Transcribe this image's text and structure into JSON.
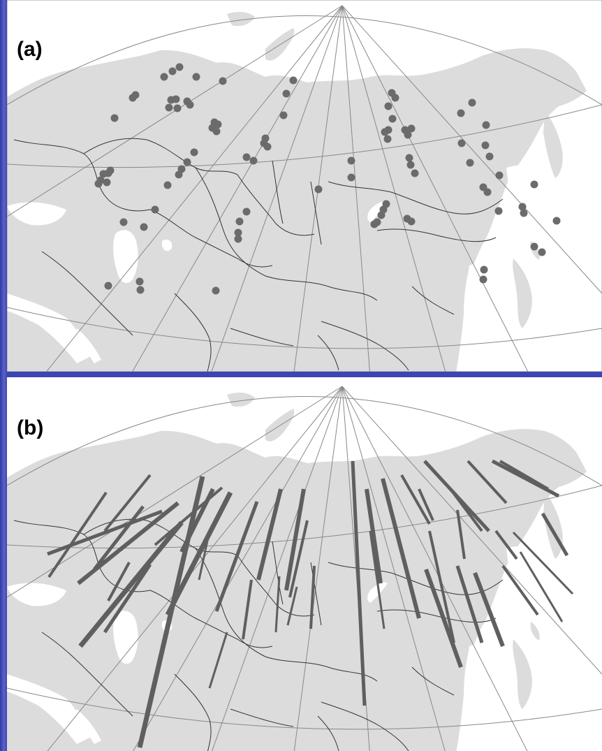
{
  "panels": [
    {
      "id": "a",
      "label": "(a)"
    },
    {
      "id": "b",
      "label": "(b)"
    }
  ],
  "colors": {
    "background": "#3b46b4",
    "ocean": "#ffffff",
    "land": "#dcdcdc",
    "graticule": "#888888",
    "borders": "#333333",
    "stations": "#6b6b6b",
    "tracks": "#5f5f5f"
  }
}
